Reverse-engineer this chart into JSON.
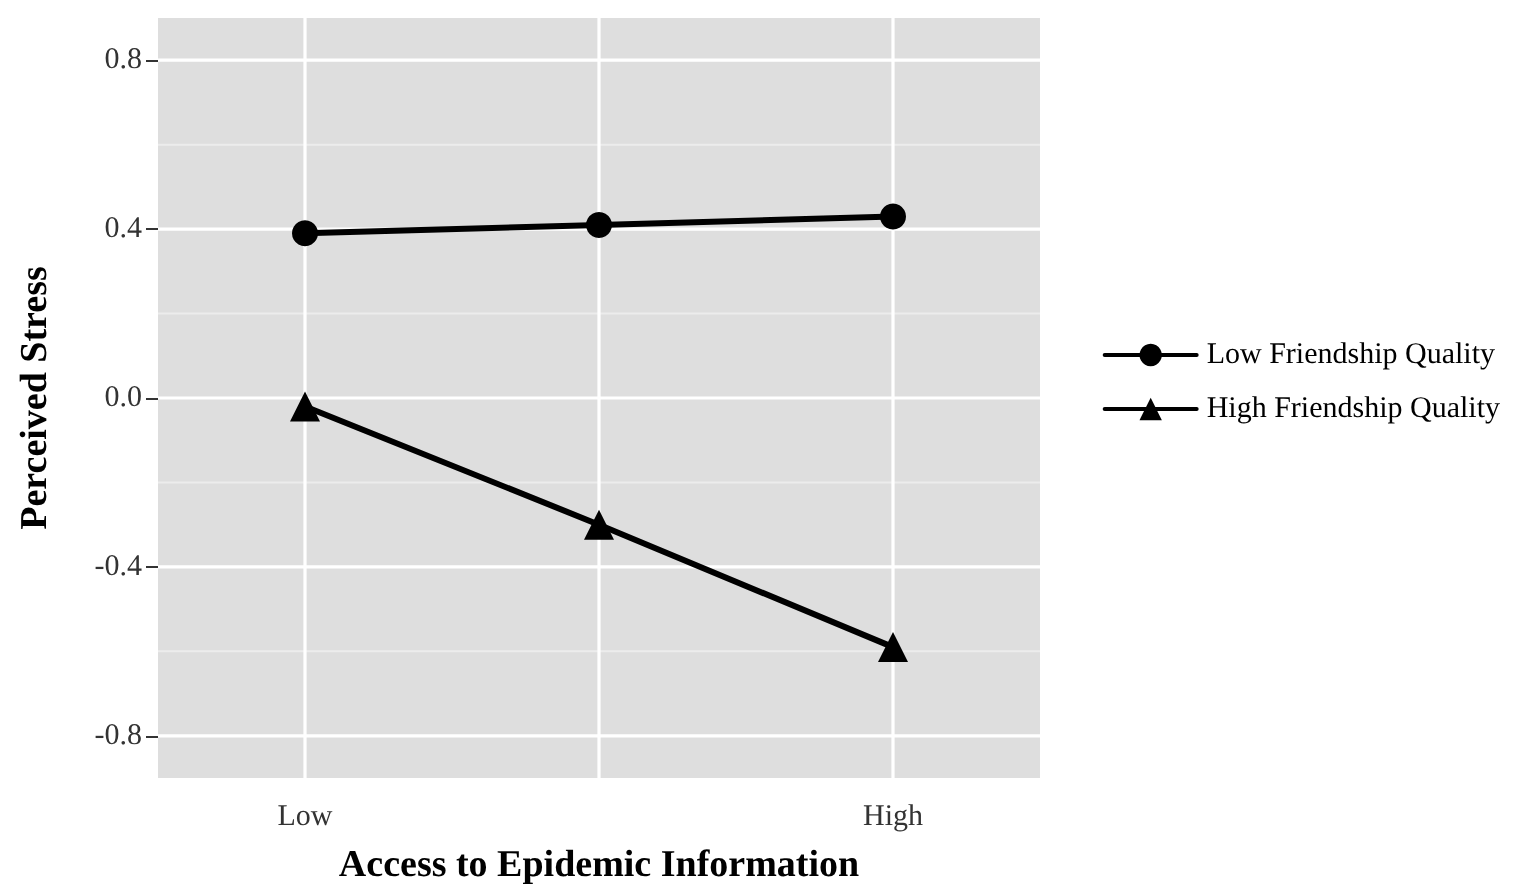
{
  "chart_data": {
    "type": "line",
    "xlabel": "Access to Epidemic Information",
    "ylabel": "Perceived Stress",
    "categories": [
      "Low",
      null,
      "High"
    ],
    "series": [
      {
        "name": "Low Friendship Quality",
        "color": "#000000",
        "marker": "circle",
        "values": [
          0.39,
          0.41,
          0.43
        ]
      },
      {
        "name": "High Friendship Quality",
        "color": "#000000",
        "marker": "triangle",
        "values": [
          -0.02,
          -0.3,
          -0.59
        ]
      }
    ],
    "ylim": [
      -0.9,
      0.9
    ],
    "yticks": [
      {
        "value": -0.8,
        "label": "-0.8"
      },
      {
        "value": -0.6,
        "label": null
      },
      {
        "value": -0.4,
        "label": "-0.4"
      },
      {
        "value": -0.2,
        "label": null
      },
      {
        "value": 0,
        "label": "0.0"
      },
      {
        "value": 0.2,
        "label": null
      },
      {
        "value": 0.4,
        "label": "0.4"
      },
      {
        "value": 0.6,
        "label": null
      },
      {
        "value": 0.8,
        "label": "0.8"
      }
    ],
    "grid": true,
    "legend": "right",
    "line_style": "solid"
  }
}
